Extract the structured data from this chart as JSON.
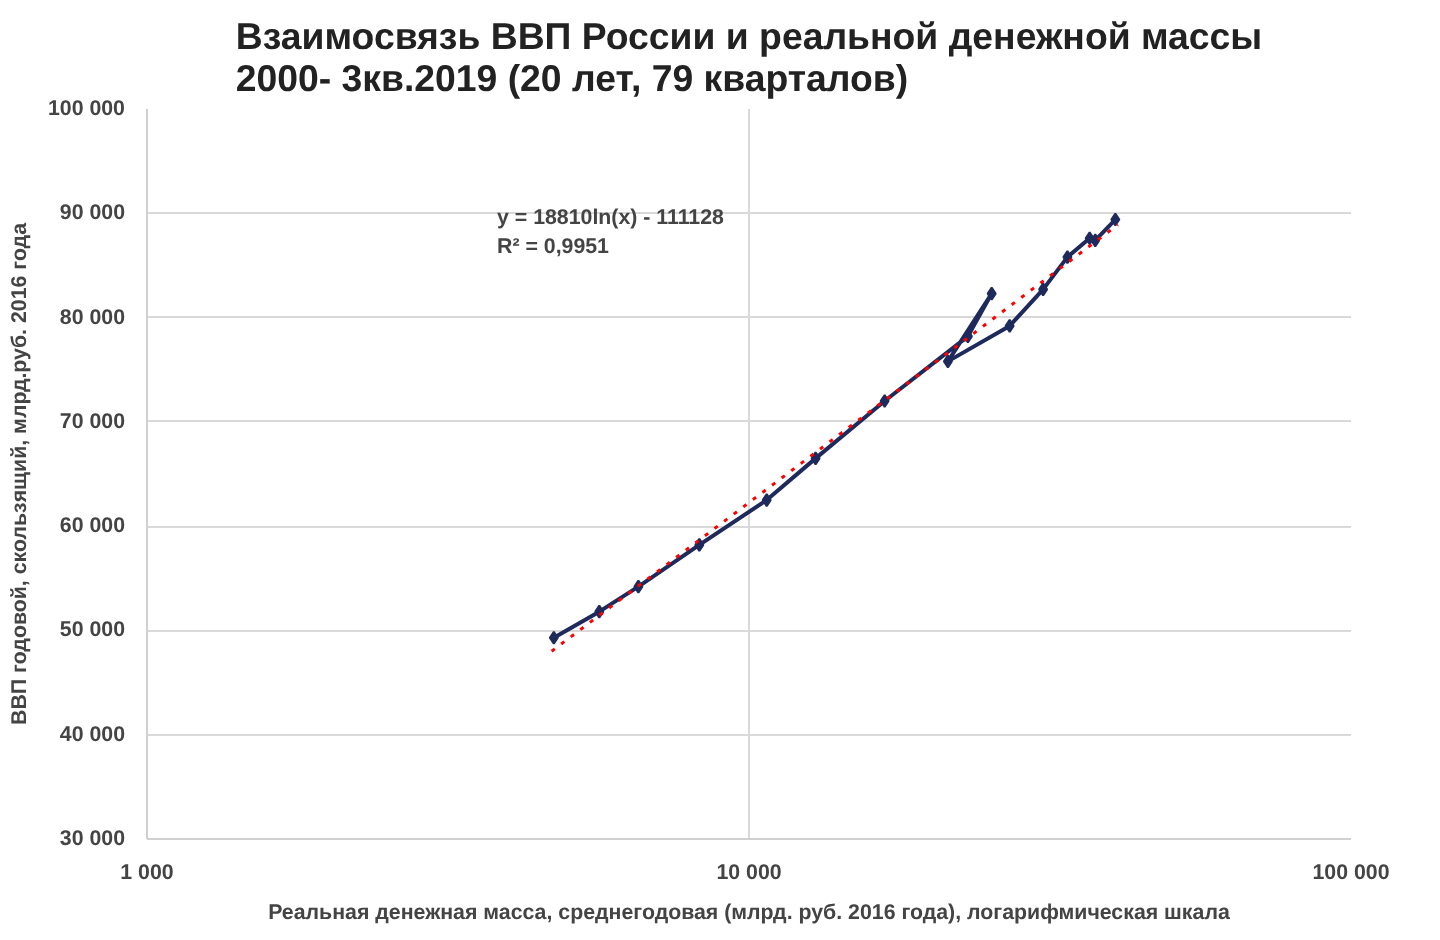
{
  "chart_data": {
    "type": "line",
    "title": "Взаимосвязь ВВП России и реальной денежной массы\n2000- 3кв.2019 (20 лет, 79 кварталов)",
    "xlabel": "Реальная денежная масса, среднегодовая (млрд. руб. 2016 года), логарифмическая шкала",
    "ylabel": "ВВП годовой, скользящий, млрд.руб. 2016 года",
    "log": "x",
    "grid": true,
    "marker": "diamond",
    "line_style": "solid",
    "xlim": [
      1000,
      100000
    ],
    "ylim": [
      30000,
      100000
    ],
    "xticks": [
      {
        "value": 1000,
        "label": "1 000"
      },
      {
        "value": 10000,
        "label": "10 000"
      },
      {
        "value": 100000,
        "label": "100 000"
      }
    ],
    "yticks": [
      {
        "value": 30000,
        "label": "30 000"
      },
      {
        "value": 40000,
        "label": "40 000"
      },
      {
        "value": 50000,
        "label": "50 000"
      },
      {
        "value": 60000,
        "label": "60 000"
      },
      {
        "value": 70000,
        "label": "70 000"
      },
      {
        "value": 80000,
        "label": "80 000"
      },
      {
        "value": 90000,
        "label": "90 000"
      },
      {
        "value": 100000,
        "label": "100 000"
      }
    ],
    "annotations": [
      "y = 18810ln(x) - 111128\nR² = 0,9951"
    ],
    "series": [
      {
        "color": "#1f2a5c",
        "x": [
          4740,
          5640,
          6550,
          8270,
          10700,
          12900,
          16800,
          23100,
          25300,
          21400,
          27100,
          30800,
          33800,
          36800,
          37600,
          40600
        ],
        "values": [
          49300,
          51800,
          54200,
          58200,
          62500,
          66500,
          72000,
          78200,
          82300,
          75800,
          79200,
          82700,
          85800,
          87600,
          87400,
          89400
        ]
      },
      {
        "color": "#ff0000",
        "marker": "none",
        "line_style": "dotted",
        "x": [
          4700,
          41000
        ],
        "values": [
          48000,
          88900
        ]
      }
    ]
  }
}
